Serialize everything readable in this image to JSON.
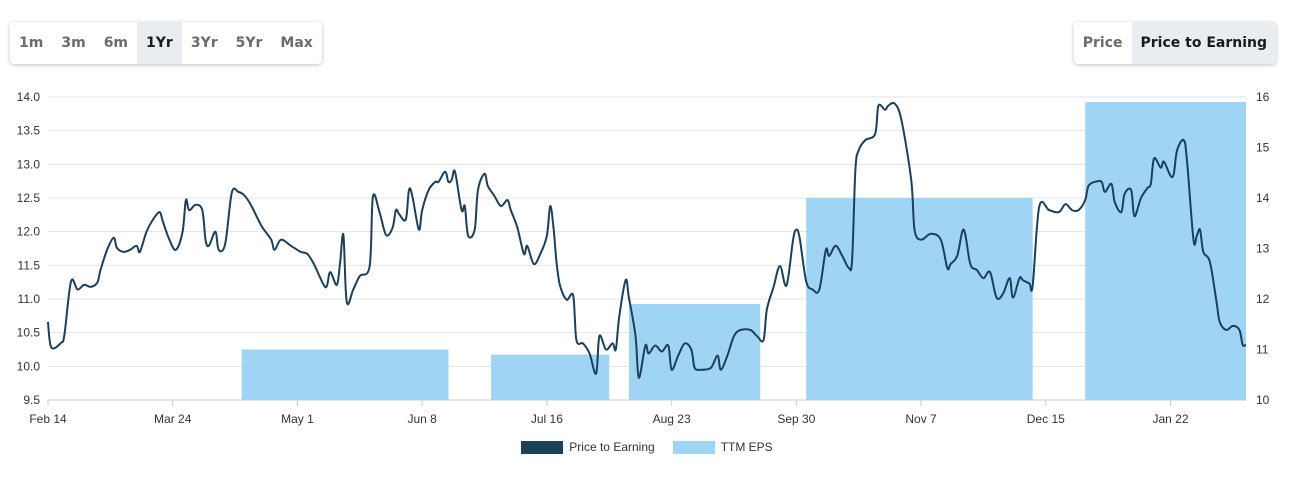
{
  "range_buttons": [
    {
      "label": "1m"
    },
    {
      "label": "3m"
    },
    {
      "label": "6m"
    },
    {
      "label": "1Yr",
      "active": true
    },
    {
      "label": "3Yr"
    },
    {
      "label": "5Yr"
    },
    {
      "label": "Max"
    }
  ],
  "mode_buttons": [
    {
      "label": "Price"
    },
    {
      "label": "Price to Earning",
      "active": true
    }
  ],
  "colors": {
    "line": "#1c3f5a",
    "bar": "#a0d4f5",
    "grid": "#e3e3e3"
  },
  "chart_data": {
    "type": "line+bar",
    "x_unit": "days since Feb 14",
    "xlim": [
      0,
      365
    ],
    "x_ticks": [
      {
        "day": 0,
        "label": "Feb 14"
      },
      {
        "day": 38,
        "label": "Mar 24"
      },
      {
        "day": 76,
        "label": "May 1"
      },
      {
        "day": 114,
        "label": "Jun 8"
      },
      {
        "day": 152,
        "label": "Jul 16"
      },
      {
        "day": 190,
        "label": "Aug 23"
      },
      {
        "day": 228,
        "label": "Sep 30"
      },
      {
        "day": 266,
        "label": "Nov 7"
      },
      {
        "day": 304,
        "label": "Dec 15"
      },
      {
        "day": 342,
        "label": "Jan 22"
      }
    ],
    "y_left": {
      "lim": [
        9.5,
        14.0
      ],
      "ticks": [
        "9.5",
        "10.0",
        "10.5",
        "11.0",
        "11.5",
        "12.0",
        "12.5",
        "13.0",
        "13.5",
        "14.0"
      ]
    },
    "y_right": {
      "lim": [
        10,
        16
      ],
      "ticks": [
        "10",
        "11",
        "12",
        "13",
        "14",
        "15",
        "16"
      ]
    },
    "grid": true,
    "legend_position": "bottom",
    "series": [
      {
        "name": "Price to Earning",
        "type": "line",
        "axis": "left",
        "points": [
          [
            0,
            10.66
          ],
          [
            1,
            10.28
          ],
          [
            4,
            10.35
          ],
          [
            5,
            10.47
          ],
          [
            7,
            11.26
          ],
          [
            9,
            11.14
          ],
          [
            11,
            11.21
          ],
          [
            13,
            11.18
          ],
          [
            15,
            11.24
          ],
          [
            16,
            11.43
          ],
          [
            18,
            11.73
          ],
          [
            20,
            11.91
          ],
          [
            21,
            11.76
          ],
          [
            23,
            11.7
          ],
          [
            25,
            11.73
          ],
          [
            27,
            11.79
          ],
          [
            28,
            11.7
          ],
          [
            30,
            12.0
          ],
          [
            32,
            12.18
          ],
          [
            34,
            12.29
          ],
          [
            35,
            12.15
          ],
          [
            37,
            11.88
          ],
          [
            39,
            11.73
          ],
          [
            41,
            12.0
          ],
          [
            42,
            12.47
          ],
          [
            43,
            12.32
          ],
          [
            45,
            12.4
          ],
          [
            47,
            12.32
          ],
          [
            48,
            11.88
          ],
          [
            49,
            11.79
          ],
          [
            51,
            12.0
          ],
          [
            52,
            11.73
          ],
          [
            54,
            11.82
          ],
          [
            56,
            12.58
          ],
          [
            58,
            12.59
          ],
          [
            60,
            12.53
          ],
          [
            62,
            12.38
          ],
          [
            65,
            12.09
          ],
          [
            68,
            11.88
          ],
          [
            69,
            11.73
          ],
          [
            71,
            11.88
          ],
          [
            74,
            11.79
          ],
          [
            77,
            11.7
          ],
          [
            79,
            11.67
          ],
          [
            81,
            11.52
          ],
          [
            84,
            11.21
          ],
          [
            85,
            11.2
          ],
          [
            86,
            11.4
          ],
          [
            88,
            11.21
          ],
          [
            89,
            11.54
          ],
          [
            90,
            11.95
          ],
          [
            91,
            10.96
          ],
          [
            93,
            11.14
          ],
          [
            95,
            11.34
          ],
          [
            98,
            11.49
          ],
          [
            99,
            12.52
          ],
          [
            101,
            12.29
          ],
          [
            103,
            11.95
          ],
          [
            105,
            12.06
          ],
          [
            106,
            12.32
          ],
          [
            107,
            12.26
          ],
          [
            109,
            12.18
          ],
          [
            110,
            12.62
          ],
          [
            111,
            12.53
          ],
          [
            113,
            12.03
          ],
          [
            114,
            12.32
          ],
          [
            116,
            12.62
          ],
          [
            118,
            12.74
          ],
          [
            119,
            12.74
          ],
          [
            121,
            12.89
          ],
          [
            122,
            12.74
          ],
          [
            123,
            12.77
          ],
          [
            124,
            12.89
          ],
          [
            126,
            12.32
          ],
          [
            127,
            12.38
          ],
          [
            128,
            11.94
          ],
          [
            130,
            12.03
          ],
          [
            131,
            12.62
          ],
          [
            133,
            12.86
          ],
          [
            134,
            12.68
          ],
          [
            136,
            12.53
          ],
          [
            138,
            12.38
          ],
          [
            140,
            12.47
          ],
          [
            141,
            12.32
          ],
          [
            143,
            12.06
          ],
          [
            145,
            11.67
          ],
          [
            146,
            11.79
          ],
          [
            148,
            11.52
          ],
          [
            150,
            11.67
          ],
          [
            152,
            11.94
          ],
          [
            153,
            12.38
          ],
          [
            154,
            12.06
          ],
          [
            155,
            11.52
          ],
          [
            156,
            11.2
          ],
          [
            158,
            10.99
          ],
          [
            160,
            11.05
          ],
          [
            161,
            10.39
          ],
          [
            163,
            10.34
          ],
          [
            165,
            10.19
          ],
          [
            167,
            9.89
          ],
          [
            168,
            10.45
          ],
          [
            170,
            10.25
          ],
          [
            172,
            10.34
          ],
          [
            173,
            10.25
          ],
          [
            174,
            10.72
          ],
          [
            176,
            11.28
          ],
          [
            177,
            11.02
          ],
          [
            179,
            10.45
          ],
          [
            180,
            9.83
          ],
          [
            182,
            10.31
          ],
          [
            183,
            10.19
          ],
          [
            185,
            10.31
          ],
          [
            187,
            10.22
          ],
          [
            189,
            10.31
          ],
          [
            190,
            9.95
          ],
          [
            192,
            10.16
          ],
          [
            194,
            10.34
          ],
          [
            196,
            10.25
          ],
          [
            197,
            9.98
          ],
          [
            199,
            9.95
          ],
          [
            202,
            9.98
          ],
          [
            204,
            10.16
          ],
          [
            205,
            9.95
          ],
          [
            207,
            10.16
          ],
          [
            209,
            10.45
          ],
          [
            211,
            10.54
          ],
          [
            214,
            10.54
          ],
          [
            216,
            10.45
          ],
          [
            218,
            10.39
          ],
          [
            219,
            10.84
          ],
          [
            221,
            11.17
          ],
          [
            223,
            11.49
          ],
          [
            225,
            11.2
          ],
          [
            227,
            11.88
          ],
          [
            228,
            12.03
          ],
          [
            229,
            11.91
          ],
          [
            231,
            11.26
          ],
          [
            233,
            11.14
          ],
          [
            235,
            11.14
          ],
          [
            237,
            11.73
          ],
          [
            238,
            11.64
          ],
          [
            240,
            11.79
          ],
          [
            242,
            11.64
          ],
          [
            244,
            11.46
          ],
          [
            245,
            11.58
          ],
          [
            246,
            12.92
          ],
          [
            247,
            13.21
          ],
          [
            249,
            13.36
          ],
          [
            252,
            13.45
          ],
          [
            253,
            13.87
          ],
          [
            255,
            13.81
          ],
          [
            256,
            13.87
          ],
          [
            258,
            13.9
          ],
          [
            260,
            13.66
          ],
          [
            263,
            12.77
          ],
          [
            264,
            12.03
          ],
          [
            266,
            11.88
          ],
          [
            269,
            11.97
          ],
          [
            272,
            11.88
          ],
          [
            274,
            11.46
          ],
          [
            275,
            11.52
          ],
          [
            277,
            11.64
          ],
          [
            279,
            12.03
          ],
          [
            281,
            11.52
          ],
          [
            283,
            11.43
          ],
          [
            285,
            11.31
          ],
          [
            287,
            11.4
          ],
          [
            289,
            11.02
          ],
          [
            291,
            11.08
          ],
          [
            293,
            11.31
          ],
          [
            294,
            11.02
          ],
          [
            296,
            11.31
          ],
          [
            297,
            11.28
          ],
          [
            299,
            11.23
          ],
          [
            300,
            11.2
          ],
          [
            302,
            12.37
          ],
          [
            305,
            12.32
          ],
          [
            308,
            12.29
          ],
          [
            310,
            12.41
          ],
          [
            312,
            12.32
          ],
          [
            314,
            12.32
          ],
          [
            316,
            12.47
          ],
          [
            317,
            12.68
          ],
          [
            319,
            12.74
          ],
          [
            321,
            12.74
          ],
          [
            322,
            12.59
          ],
          [
            324,
            12.71
          ],
          [
            325,
            12.44
          ],
          [
            327,
            12.29
          ],
          [
            328,
            12.56
          ],
          [
            330,
            12.62
          ],
          [
            331,
            12.23
          ],
          [
            333,
            12.5
          ],
          [
            335,
            12.65
          ],
          [
            336,
            12.71
          ],
          [
            337,
            13.09
          ],
          [
            339,
            12.95
          ],
          [
            340,
            13.04
          ],
          [
            342,
            12.83
          ],
          [
            343,
            12.86
          ],
          [
            344,
            13.21
          ],
          [
            346,
            13.36
          ],
          [
            347,
            13.07
          ],
          [
            349,
            11.88
          ],
          [
            350,
            11.94
          ],
          [
            351,
            12.03
          ],
          [
            352,
            11.7
          ],
          [
            354,
            11.55
          ],
          [
            356,
            10.96
          ],
          [
            357,
            10.66
          ],
          [
            359,
            10.54
          ],
          [
            361,
            10.6
          ],
          [
            363,
            10.54
          ],
          [
            364,
            10.32
          ],
          [
            365,
            10.32
          ]
        ]
      },
      {
        "name": "TTM EPS",
        "type": "bar",
        "axis": "right",
        "bars": [
          {
            "start": 59,
            "end": 122,
            "value": 11.0
          },
          {
            "start": 135,
            "end": 171,
            "value": 10.9
          },
          {
            "start": 177,
            "end": 217,
            "value": 11.9
          },
          {
            "start": 231,
            "end": 300,
            "value": 14.0
          },
          {
            "start": 316,
            "end": 365,
            "value": 15.9
          }
        ]
      }
    ]
  }
}
